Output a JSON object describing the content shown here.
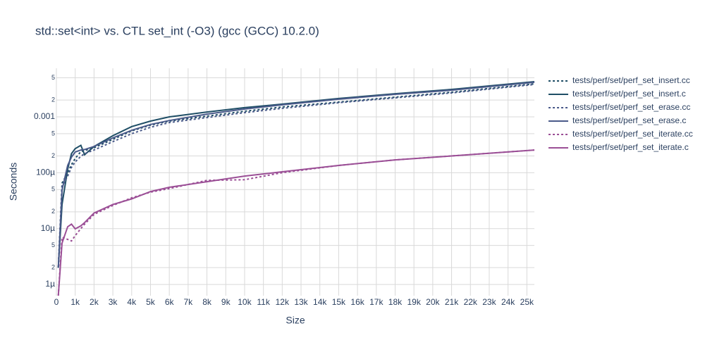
{
  "chart_data": {
    "type": "line",
    "title": "std::set<int> vs. CTL set_int (-O3) (gcc (GCC) 10.2.0)",
    "xlabel": "Size",
    "ylabel": "Seconds",
    "log_y": true,
    "grid": true,
    "legend": "right",
    "x": [
      100,
      300,
      600,
      800,
      1000,
      1300,
      1500,
      2000,
      3000,
      4000,
      5000,
      6000,
      8000,
      10000,
      12000,
      15000,
      18000,
      21000,
      25400
    ],
    "xlim": [
      0,
      25400
    ],
    "xticks": [
      0,
      {
        "value": 1000,
        "label": "1k"
      },
      {
        "value": 2000,
        "label": "2k"
      },
      {
        "value": 3000,
        "label": "3k"
      },
      {
        "value": 4000,
        "label": "4k"
      },
      {
        "value": 5000,
        "label": "5k"
      },
      {
        "value": 6000,
        "label": "6k"
      },
      {
        "value": 7000,
        "label": "7k"
      },
      {
        "value": 8000,
        "label": "8k"
      },
      {
        "value": 9000,
        "label": "9k"
      },
      {
        "value": 10000,
        "label": "10k"
      },
      {
        "value": 11000,
        "label": "11k"
      },
      {
        "value": 12000,
        "label": "12k"
      },
      {
        "value": 13000,
        "label": "13k"
      },
      {
        "value": 14000,
        "label": "14k"
      },
      {
        "value": 15000,
        "label": "15k"
      },
      {
        "value": 16000,
        "label": "16k"
      },
      {
        "value": 17000,
        "label": "17k"
      },
      {
        "value": 18000,
        "label": "18k"
      },
      {
        "value": 19000,
        "label": "19k"
      },
      {
        "value": 20000,
        "label": "20k"
      },
      {
        "value": 21000,
        "label": "21k"
      },
      {
        "value": 22000,
        "label": "22k"
      },
      {
        "value": 23000,
        "label": "23k"
      },
      {
        "value": 24000,
        "label": "24k"
      },
      {
        "value": 25000,
        "label": "25k"
      }
    ],
    "ylim": [
      6.3e-07,
      0.0074
    ],
    "yticks": [
      {
        "value": 1e-06,
        "label": "1µ"
      },
      {
        "value": 2e-06,
        "label": "2"
      },
      {
        "value": 5e-06,
        "label": "5"
      },
      {
        "value": 1e-05,
        "label": "10µ"
      },
      {
        "value": 2e-05,
        "label": "2"
      },
      {
        "value": 5e-05,
        "label": "5"
      },
      {
        "value": 0.0001,
        "label": "100µ"
      },
      {
        "value": 0.0002,
        "label": "2"
      },
      {
        "value": 0.0005,
        "label": "5"
      },
      0.001,
      {
        "value": 0.002,
        "label": "2"
      },
      {
        "value": 0.005,
        "label": "5"
      }
    ],
    "series": [
      {
        "name": "tests/perf/set/perf_set_insert.cc",
        "color": "#1f4e66",
        "dash": "dot",
        "values": [
          2e-06,
          6.5e-05,
          0.0001,
          0.00014,
          0.00018,
          0.00024,
          0.00025,
          0.00028,
          0.000395,
          0.00056,
          0.00071,
          0.00084,
          0.00103,
          0.00126,
          0.0015,
          0.00184,
          0.00225,
          0.00276,
          0.0039
        ]
      },
      {
        "name": "tests/perf/set/perf_set_insert.c",
        "color": "#1f4e66",
        "dash": "solid",
        "values": [
          2e-06,
          2.7e-05,
          0.000116,
          0.00022,
          0.00027,
          0.00031,
          0.00021,
          0.000295,
          0.00046,
          0.00067,
          0.00084,
          0.001,
          0.00122,
          0.00146,
          0.00169,
          0.00213,
          0.0026,
          0.0031,
          0.00427
        ]
      },
      {
        "name": "tests/perf/set/perf_set_erase.cc",
        "color": "#4a5a8a",
        "dash": "dot",
        "values": [
          2e-06,
          5.6e-05,
          8.7e-05,
          0.000125,
          0.000156,
          0.000197,
          0.00022,
          0.000255,
          0.00036,
          0.0005,
          0.00065,
          0.00079,
          0.00097,
          0.00119,
          0.00142,
          0.00179,
          0.00219,
          0.00268,
          0.0038
        ]
      },
      {
        "name": "tests/perf/set/perf_set_erase.c",
        "color": "#4a5a8a",
        "dash": "solid",
        "values": [
          2e-06,
          4.9e-05,
          0.000135,
          0.00019,
          0.000235,
          0.000255,
          0.00026,
          0.000295,
          0.00042,
          0.000575,
          0.00073,
          0.00086,
          0.00112,
          0.00138,
          0.00164,
          0.00207,
          0.00253,
          0.003,
          0.00415
        ]
      },
      {
        "name": "tests/perf/set/perf_set_iterate.cc",
        "color": "#9b4f96",
        "dash": "dot",
        "values": [
          6.3e-07,
          7e-06,
          6.4e-06,
          6e-06,
          7.5e-06,
          1e-05,
          1.2e-05,
          1.8e-05,
          2.6e-05,
          3.55e-05,
          4.5e-05,
          5.2e-05,
          7.3e-05,
          7.5e-05,
          0.0001,
          0.000135,
          0.00017,
          0.0002,
          0.000255
        ]
      },
      {
        "name": "tests/perf/set/perf_set_iterate.c",
        "color": "#9b4f96",
        "dash": "solid",
        "values": [
          6.3e-07,
          5.5e-06,
          1.08e-05,
          1.2e-05,
          9.9e-06,
          1.12e-05,
          1.28e-05,
          1.9e-05,
          2.7e-05,
          3.4e-05,
          4.6e-05,
          5.5e-05,
          6.9e-05,
          8.7e-05,
          0.000104,
          0.000135,
          0.00017,
          0.0002,
          0.000255
        ]
      }
    ]
  }
}
